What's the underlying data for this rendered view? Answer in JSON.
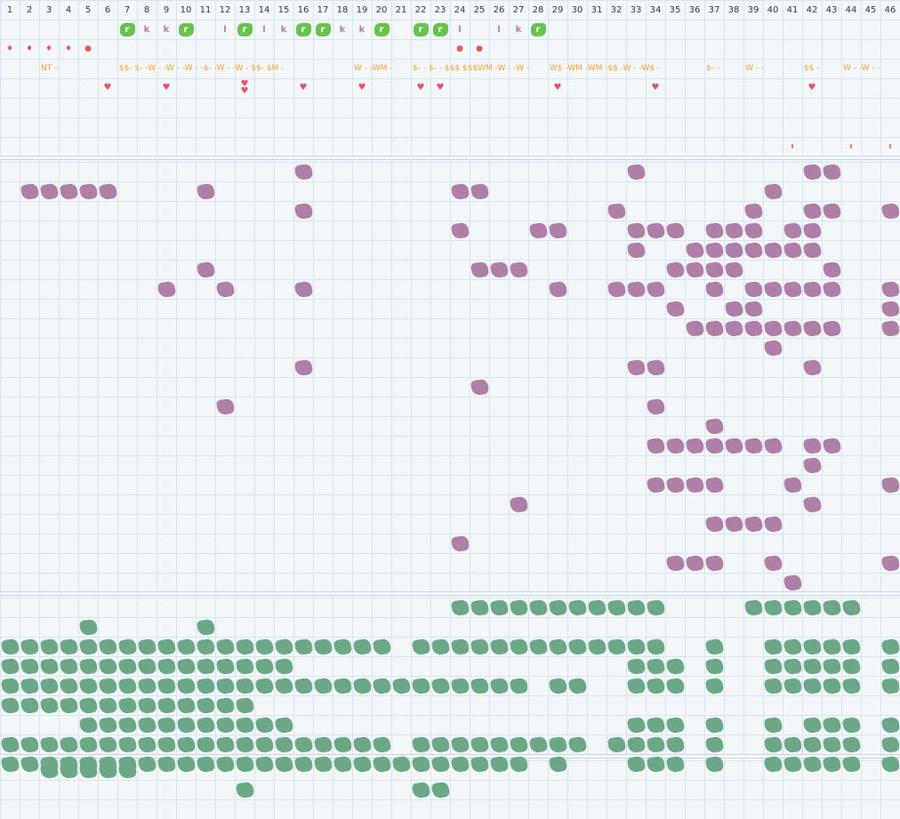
{
  "columns": [
    "1",
    "2",
    "3",
    "4",
    "5",
    "6",
    "7",
    "8",
    "9",
    "10",
    "11",
    "12",
    "13",
    "14",
    "15",
    "16",
    "17",
    "18",
    "19",
    "20",
    "21",
    "22",
    "23",
    "24",
    "25",
    "26",
    "27",
    "28",
    "29",
    "30",
    "31",
    "32",
    "33",
    "34",
    "35",
    "36",
    "37",
    "38",
    "39",
    "40",
    "41",
    "42",
    "43",
    "44",
    "45",
    "46"
  ],
  "colors": {
    "purple": "#b07fa8",
    "green": "#6ca888",
    "badge": "#69c24d",
    "money": "#f0a43a",
    "heart": "#e05577",
    "grid": "#d6e6ec",
    "background": "#f3f7f9"
  },
  "icons": {
    "badge": "r-badge-icon",
    "drop": "drop-icon",
    "dot": "dot-icon",
    "heart": "heart-icon",
    "block": "blob-block-icon"
  },
  "badge_row": {
    "r_cols": [
      7,
      10,
      13,
      16,
      17,
      20,
      22,
      23,
      28
    ],
    "letters": [
      {
        "col": 8,
        "text": "k"
      },
      {
        "col": 9,
        "text": "k"
      },
      {
        "col": 12,
        "text": "l"
      },
      {
        "col": 14,
        "text": "l"
      },
      {
        "col": 15,
        "text": "k"
      },
      {
        "col": 18,
        "text": "k"
      },
      {
        "col": 19,
        "text": "k"
      },
      {
        "col": 24,
        "text": "l"
      },
      {
        "col": 26,
        "text": "l"
      },
      {
        "col": 27,
        "text": "k"
      }
    ],
    "r_label": "r"
  },
  "marker_row": {
    "drops": [
      1,
      2,
      3,
      4
    ],
    "dots": [
      5,
      24,
      25
    ]
  },
  "money_row": [
    {
      "col": 3,
      "text": "NT -"
    },
    {
      "col": 7,
      "text": "$$-  $-  -W -  -W -  -W -  -$-  -W -  -W -  $$-  $M -"
    },
    {
      "col": 19,
      "text": "W -  -WM -"
    },
    {
      "col": 22,
      "text": "$-  -  $-  -  $$$  $$$WM -W -  -W -"
    },
    {
      "col": 29,
      "text": "W$ -WM -WM -$$ -W -  -W$ -"
    },
    {
      "col": 37,
      "text": "$-  -"
    },
    {
      "col": 39,
      "text": "W -  -"
    },
    {
      "col": 42,
      "text": "$$ -"
    },
    {
      "col": 44,
      "text": "W -  -W -  -"
    }
  ],
  "heart_row": {
    "single": [
      6,
      9,
      16,
      19,
      22,
      23,
      29,
      34,
      42
    ],
    "double": [
      13
    ]
  },
  "tick_row": {
    "cols": [
      41,
      44,
      46
    ],
    "text": "ı"
  },
  "purple_cells": [
    [
      16,
      8
    ],
    [
      33,
      8
    ],
    [
      42,
      8
    ],
    [
      43,
      8
    ],
    [
      2,
      9
    ],
    [
      3,
      9
    ],
    [
      4,
      9
    ],
    [
      5,
      9
    ],
    [
      6,
      9
    ],
    [
      11,
      9
    ],
    [
      24,
      9
    ],
    [
      25,
      9
    ],
    [
      40,
      9
    ],
    [
      16,
      10
    ],
    [
      32,
      10
    ],
    [
      39,
      10
    ],
    [
      42,
      10
    ],
    [
      43,
      10
    ],
    [
      46,
      10
    ],
    [
      24,
      11
    ],
    [
      28,
      11
    ],
    [
      29,
      11
    ],
    [
      33,
      11
    ],
    [
      34,
      11
    ],
    [
      35,
      11
    ],
    [
      37,
      11
    ],
    [
      38,
      11
    ],
    [
      39,
      11
    ],
    [
      41,
      11
    ],
    [
      42,
      11
    ],
    [
      33,
      12
    ],
    [
      36,
      12
    ],
    [
      37,
      12
    ],
    [
      38,
      12
    ],
    [
      39,
      12
    ],
    [
      40,
      12
    ],
    [
      41,
      12
    ],
    [
      42,
      12
    ],
    [
      11,
      13
    ],
    [
      25,
      13
    ],
    [
      26,
      13
    ],
    [
      27,
      13
    ],
    [
      35,
      13
    ],
    [
      36,
      13
    ],
    [
      37,
      13
    ],
    [
      38,
      13
    ],
    [
      43,
      13
    ],
    [
      9,
      14
    ],
    [
      12,
      14
    ],
    [
      16,
      14
    ],
    [
      29,
      14
    ],
    [
      32,
      14
    ],
    [
      33,
      14
    ],
    [
      34,
      14
    ],
    [
      37,
      14
    ],
    [
      39,
      14
    ],
    [
      40,
      14
    ],
    [
      41,
      14
    ],
    [
      42,
      14
    ],
    [
      43,
      14
    ],
    [
      46,
      14
    ],
    [
      35,
      15
    ],
    [
      38,
      15
    ],
    [
      39,
      15
    ],
    [
      46,
      15
    ],
    [
      36,
      16
    ],
    [
      37,
      16
    ],
    [
      38,
      16
    ],
    [
      39,
      16
    ],
    [
      40,
      16
    ],
    [
      41,
      16
    ],
    [
      42,
      16
    ],
    [
      43,
      16
    ],
    [
      46,
      16
    ],
    [
      40,
      17
    ],
    [
      16,
      18
    ],
    [
      33,
      18
    ],
    [
      34,
      18
    ],
    [
      42,
      18
    ],
    [
      25,
      19
    ],
    [
      12,
      20
    ],
    [
      34,
      20
    ],
    [
      37,
      21
    ],
    [
      34,
      22
    ],
    [
      35,
      22
    ],
    [
      36,
      22
    ],
    [
      37,
      22
    ],
    [
      38,
      22
    ],
    [
      39,
      22
    ],
    [
      40,
      22
    ],
    [
      42,
      22
    ],
    [
      43,
      22
    ],
    [
      42,
      23
    ],
    [
      34,
      24
    ],
    [
      35,
      24
    ],
    [
      36,
      24
    ],
    [
      37,
      24
    ],
    [
      41,
      24
    ],
    [
      46,
      24
    ],
    [
      27,
      25
    ],
    [
      42,
      25
    ],
    [
      37,
      26
    ],
    [
      38,
      26
    ],
    [
      39,
      26
    ],
    [
      40,
      26
    ],
    [
      24,
      27
    ],
    [
      35,
      28
    ],
    [
      36,
      28
    ],
    [
      37,
      28
    ],
    [
      40,
      28
    ],
    [
      46,
      28
    ],
    [
      41,
      29
    ]
  ],
  "green_rows": [
    {
      "row": 30,
      "ranges": [
        [
          24,
          34
        ],
        [
          39,
          44
        ]
      ]
    },
    {
      "row": 31,
      "ranges": [
        [
          5,
          5
        ],
        [
          11,
          11
        ]
      ]
    },
    {
      "row": 32,
      "ranges": [
        [
          1,
          20
        ],
        [
          22,
          34
        ],
        [
          37,
          37
        ],
        [
          40,
          44
        ],
        [
          46,
          46
        ]
      ]
    },
    {
      "row": 33,
      "ranges": [
        [
          1,
          15
        ],
        [
          33,
          35
        ],
        [
          37,
          37
        ],
        [
          40,
          44
        ],
        [
          46,
          46
        ]
      ]
    },
    {
      "row": 34,
      "ranges": [
        [
          1,
          27
        ],
        [
          29,
          30
        ],
        [
          33,
          35
        ],
        [
          37,
          37
        ],
        [
          40,
          44
        ],
        [
          46,
          46
        ]
      ]
    },
    {
      "row": 35,
      "ranges": [
        [
          1,
          13
        ]
      ]
    },
    {
      "row": 36,
      "ranges": [
        [
          5,
          15
        ],
        [
          33,
          35
        ],
        [
          37,
          37
        ],
        [
          40,
          40
        ],
        [
          42,
          44
        ],
        [
          46,
          46
        ]
      ]
    },
    {
      "row": 37,
      "ranges": [
        [
          1,
          20
        ],
        [
          22,
          30
        ],
        [
          32,
          35
        ],
        [
          37,
          37
        ],
        [
          40,
          44
        ],
        [
          46,
          46
        ]
      ]
    },
    {
      "row": 38,
      "ranges": [
        [
          1,
          27
        ],
        [
          29,
          29
        ],
        [
          33,
          35
        ],
        [
          37,
          37
        ],
        [
          40,
          44
        ],
        [
          46,
          46
        ]
      ]
    },
    {
      "row": 39,
      "ranges": [
        [
          3,
          7
        ]
      ]
    },
    {
      "row": 40,
      "ranges": [
        [
          13,
          13
        ],
        [
          22,
          23
        ]
      ]
    }
  ]
}
